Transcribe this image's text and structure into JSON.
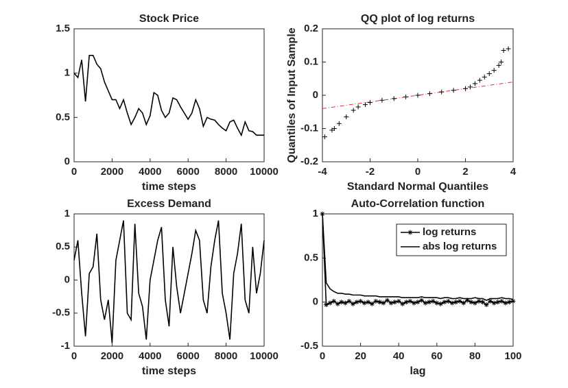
{
  "chart_data": [
    {
      "type": "line",
      "title": "Stock Price",
      "xlabel": "time steps",
      "color": "#000000",
      "x": [
        0,
        200,
        400,
        600,
        800,
        1000,
        1200,
        1400,
        1600,
        1800,
        2000,
        2200,
        2400,
        2600,
        2800,
        3000,
        3200,
        3400,
        3600,
        3800,
        4000,
        4200,
        4400,
        4600,
        4800,
        5000,
        5200,
        5400,
        5600,
        5800,
        6000,
        6200,
        6400,
        6600,
        6800,
        7000,
        7200,
        7400,
        7600,
        7800,
        8000,
        8200,
        8400,
        8600,
        8800,
        9000,
        9200,
        9400,
        9600,
        9800,
        10000
      ],
      "values": [
        1.0,
        0.95,
        1.15,
        0.68,
        1.2,
        1.2,
        1.1,
        1.05,
        0.9,
        0.8,
        0.7,
        0.7,
        0.6,
        0.7,
        0.55,
        0.42,
        0.5,
        0.6,
        0.55,
        0.42,
        0.52,
        0.78,
        0.75,
        0.58,
        0.5,
        0.55,
        0.72,
        0.7,
        0.62,
        0.55,
        0.48,
        0.55,
        0.7,
        0.6,
        0.4,
        0.5,
        0.48,
        0.47,
        0.42,
        0.38,
        0.35,
        0.45,
        0.47,
        0.38,
        0.3,
        0.45,
        0.35,
        0.34,
        0.3,
        0.3,
        0.3
      ],
      "xlim": [
        0,
        10000
      ],
      "ylim": [
        0,
        1.5
      ],
      "xticks": [
        0,
        2000,
        4000,
        6000,
        8000,
        10000
      ],
      "yticks": [
        0,
        0.5,
        1,
        1.5
      ]
    },
    {
      "type": "scatter",
      "title": "QQ plot of log returns",
      "xlabel": "Standard Normal Quantiles",
      "ylabel": "Quantiles of Input Sample",
      "color": "#000000",
      "x": [
        -3.9,
        -3.6,
        -3.5,
        -3.3,
        -3.0,
        -2.7,
        -2.5,
        -2.2,
        -2.0,
        -1.5,
        -1.0,
        -0.5,
        0,
        0.5,
        1.0,
        1.5,
        2.0,
        2.2,
        2.4,
        2.6,
        2.8,
        3.0,
        3.2,
        3.4,
        3.5,
        3.6,
        3.8
      ],
      "values": [
        -0.125,
        -0.105,
        -0.1,
        -0.085,
        -0.065,
        -0.045,
        -0.035,
        -0.028,
        -0.022,
        -0.015,
        -0.01,
        -0.005,
        0,
        0.005,
        0.01,
        0.015,
        0.02,
        0.025,
        0.035,
        0.045,
        0.055,
        0.065,
        0.075,
        0.09,
        0.1,
        0.135,
        0.14
      ],
      "reference_line": {
        "x": [
          -4,
          4
        ],
        "values": [
          -0.04,
          0.04
        ],
        "color": "#e03030"
      },
      "xlim": [
        -4,
        4
      ],
      "ylim": [
        -0.2,
        0.2
      ],
      "xticks": [
        -4,
        -2,
        0,
        2,
        4
      ],
      "yticks": [
        -0.2,
        -0.1,
        0,
        0.1,
        0.2
      ]
    },
    {
      "type": "line",
      "title": "Excess Demand",
      "xlabel": "time steps",
      "color": "#000000",
      "x": [
        0,
        200,
        400,
        600,
        800,
        1000,
        1200,
        1400,
        1600,
        1800,
        2000,
        2200,
        2400,
        2600,
        2800,
        3000,
        3200,
        3400,
        3600,
        3800,
        4000,
        4200,
        4400,
        4600,
        4800,
        5000,
        5200,
        5400,
        5600,
        5800,
        6000,
        6200,
        6400,
        6600,
        6800,
        7000,
        7200,
        7400,
        7600,
        7800,
        8000,
        8200,
        8400,
        8600,
        8800,
        9000,
        9200,
        9400,
        9600,
        9800,
        10000
      ],
      "values": [
        0.3,
        0.6,
        -0.2,
        -0.85,
        0.1,
        0.2,
        0.7,
        -0.3,
        -0.6,
        -0.3,
        -0.95,
        0.3,
        0.6,
        0.9,
        -0.5,
        -0.6,
        0.85,
        -0.2,
        -0.4,
        -0.9,
        0.0,
        0.3,
        0.6,
        0.8,
        -0.3,
        -0.7,
        0.5,
        -0.1,
        -0.5,
        -0.2,
        0.1,
        0.4,
        0.75,
        0.6,
        -0.3,
        -0.5,
        0.2,
        0.6,
        0.9,
        -0.2,
        -0.5,
        -0.9,
        0.1,
        0.4,
        0.85,
        -0.3,
        -0.5,
        0.5,
        -0.2,
        0.1,
        0.6
      ],
      "xlim": [
        0,
        10000
      ],
      "ylim": [
        -1,
        1
      ],
      "xticks": [
        0,
        2000,
        4000,
        6000,
        8000,
        10000
      ],
      "yticks": [
        -1,
        -0.5,
        0,
        0.5,
        1
      ]
    },
    {
      "type": "line",
      "title": "Auto-Correlation function",
      "xlabel": "lag",
      "legend": "northeast",
      "x": [
        0,
        2,
        4,
        6,
        8,
        10,
        12,
        14,
        16,
        18,
        20,
        22,
        24,
        26,
        28,
        30,
        32,
        34,
        36,
        38,
        40,
        42,
        44,
        46,
        48,
        50,
        52,
        54,
        56,
        58,
        60,
        62,
        64,
        66,
        68,
        70,
        72,
        74,
        76,
        78,
        80,
        82,
        84,
        86,
        88,
        90,
        92,
        94,
        96,
        98,
        100
      ],
      "series": [
        {
          "name": "log returns",
          "color": "#000000",
          "marker": "*",
          "values": [
            1,
            -0.03,
            -0.01,
            0.01,
            -0.02,
            0,
            -0.01,
            0.01,
            -0.02,
            0,
            0.01,
            -0.01,
            0,
            -0.02,
            0.01,
            0,
            -0.01,
            0.02,
            -0.01,
            0,
            0.01,
            -0.02,
            0,
            0.01,
            -0.01,
            0,
            0.02,
            -0.01,
            0,
            0.01,
            -0.01,
            -0.02,
            0,
            0.01,
            -0.01,
            0,
            0.01,
            -0.01,
            0.02,
            0,
            -0.01,
            0.01,
            0,
            -0.03,
            0.01,
            -0.01,
            0,
            0.01,
            -0.01,
            0,
            0.01
          ]
        },
        {
          "name": "abs log returns",
          "color": "#000000",
          "values": [
            1,
            0.22,
            0.15,
            0.12,
            0.1,
            0.1,
            0.09,
            0.09,
            0.08,
            0.08,
            0.08,
            0.07,
            0.07,
            0.07,
            0.07,
            0.06,
            0.06,
            0.06,
            0.06,
            0.06,
            0.06,
            0.05,
            0.05,
            0.05,
            0.05,
            0.05,
            0.06,
            0.05,
            0.05,
            0.05,
            0.05,
            0.04,
            0.05,
            0.05,
            0.04,
            0.04,
            0.05,
            0.04,
            0.04,
            0.04,
            0.05,
            0.04,
            0.04,
            0.02,
            0.04,
            0.04,
            0.04,
            0.05,
            0.04,
            0.04,
            0.03
          ]
        }
      ],
      "xlim": [
        0,
        100
      ],
      "ylim": [
        -0.5,
        1
      ],
      "xticks": [
        0,
        20,
        40,
        60,
        80,
        100
      ],
      "yticks": [
        -0.5,
        0,
        0.5,
        1
      ]
    }
  ]
}
